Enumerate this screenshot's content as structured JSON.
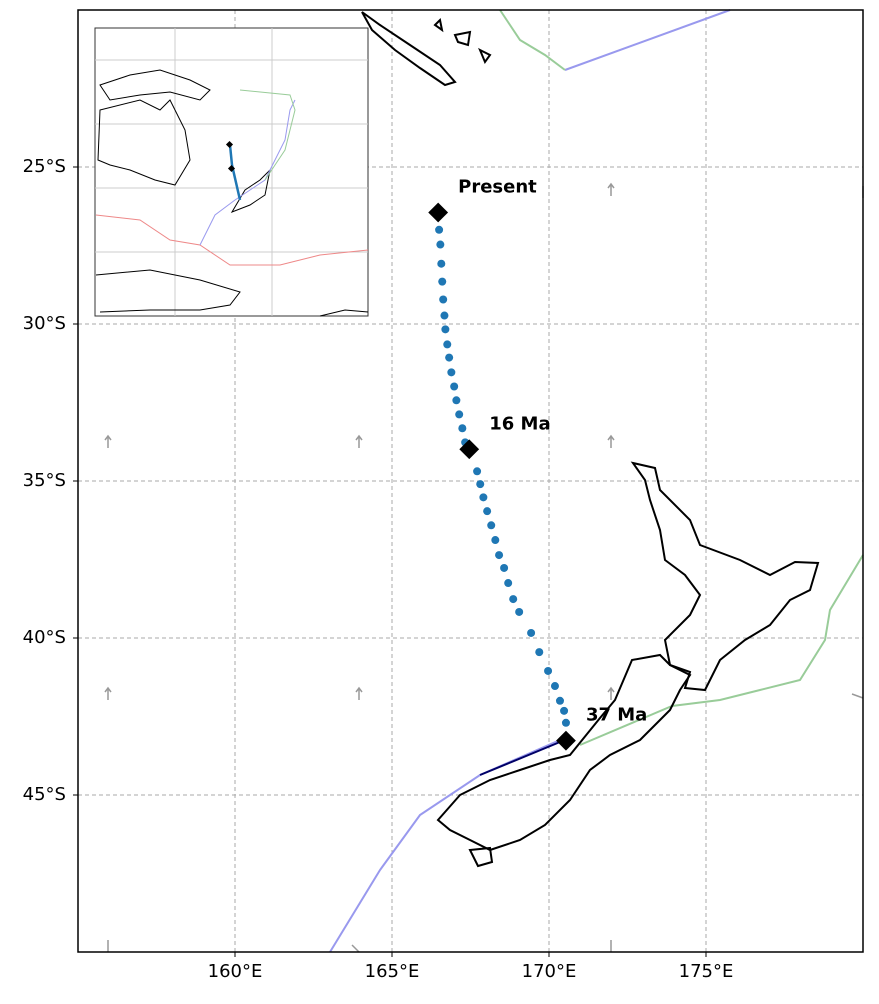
{
  "map": {
    "xlim": [
      155,
      180
    ],
    "ylim": [
      -50,
      -20
    ],
    "grid": true,
    "xticks": [
      {
        "value": 160,
        "label": "160°E"
      },
      {
        "value": 165,
        "label": "165°E"
      },
      {
        "value": 170,
        "label": "170°E"
      },
      {
        "value": 175,
        "label": "175°E"
      }
    ],
    "yticks": [
      {
        "value": -25,
        "label": "25°S"
      },
      {
        "value": -30,
        "label": "30°S"
      },
      {
        "value": -35,
        "label": "35°S"
      },
      {
        "value": -40,
        "label": "40°S"
      },
      {
        "value": -45,
        "label": "45°S"
      }
    ],
    "track": {
      "color": "#1f77b4",
      "lon": [
        166.5,
        166.54,
        166.57,
        166.6,
        166.63,
        166.67,
        166.7,
        166.76,
        166.82,
        166.89,
        166.98,
        167.05,
        167.14,
        167.24,
        167.33,
        167.71,
        167.81,
        167.91,
        168.03,
        168.16,
        168.29,
        168.41,
        168.57,
        168.7,
        168.86,
        169.05,
        169.43,
        169.69,
        169.97,
        170.19,
        170.35,
        170.48,
        170.54
      ],
      "lat": [
        -27.0,
        -27.47,
        -28.08,
        -28.65,
        -29.22,
        -29.73,
        -30.17,
        -30.65,
        -31.07,
        -31.54,
        -31.99,
        -32.43,
        -32.88,
        -33.32,
        -33.77,
        -34.69,
        -35.1,
        -35.52,
        -35.96,
        -36.41,
        -36.88,
        -37.36,
        -37.77,
        -38.25,
        -38.76,
        -39.17,
        -39.84,
        -40.45,
        -41.05,
        -41.53,
        -42.0,
        -42.32,
        -42.7
      ]
    },
    "markers": [
      {
        "label": "Present",
        "lon": 166.47,
        "lat": -26.45
      },
      {
        "label": "16 Ma",
        "lon": 167.46,
        "lat": -33.99
      },
      {
        "label": "37 Ma",
        "lon": 170.54,
        "lat": -43.27
      }
    ]
  }
}
